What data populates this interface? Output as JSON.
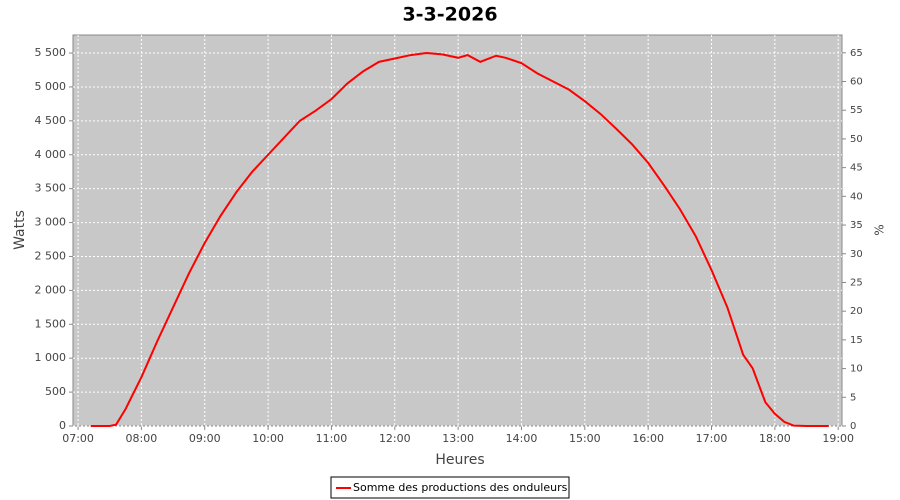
{
  "chart_data": {
    "type": "line",
    "title": "3-3-2026",
    "xlabel": "Heures",
    "ylabel": "Watts",
    "y2label": "%",
    "x": [
      7.2,
      7.5,
      7.6,
      7.75,
      8.0,
      8.25,
      8.5,
      8.75,
      9.0,
      9.25,
      9.5,
      9.75,
      10.0,
      10.25,
      10.5,
      10.75,
      11.0,
      11.25,
      11.5,
      11.75,
      12.0,
      12.25,
      12.5,
      12.75,
      13.0,
      13.15,
      13.35,
      13.6,
      13.75,
      14.0,
      14.25,
      14.5,
      14.75,
      15.0,
      15.25,
      15.5,
      15.75,
      16.0,
      16.25,
      16.5,
      16.75,
      17.0,
      17.25,
      17.5,
      17.65,
      17.85,
      18.0,
      18.15,
      18.3,
      18.5,
      18.85
    ],
    "series": [
      {
        "name": "Somme des productions des onduleurs",
        "color": "#ff0000",
        "values": [
          0,
          0,
          20,
          250,
          720,
          1250,
          1750,
          2250,
          2700,
          3100,
          3450,
          3750,
          4000,
          4250,
          4500,
          4650,
          4820,
          5050,
          5230,
          5370,
          5420,
          5470,
          5500,
          5480,
          5430,
          5470,
          5370,
          5460,
          5430,
          5350,
          5200,
          5080,
          4960,
          4790,
          4600,
          4380,
          4150,
          3880,
          3550,
          3200,
          2800,
          2300,
          1750,
          1050,
          850,
          350,
          180,
          60,
          5,
          0,
          0
        ]
      }
    ],
    "xlim": [
      6.92,
      19.06
    ],
    "xticks": [
      {
        "value": 7,
        "label": "07:00"
      },
      {
        "value": 8,
        "label": "08:00"
      },
      {
        "value": 9,
        "label": "09:00"
      },
      {
        "value": 10,
        "label": "10:00"
      },
      {
        "value": 11,
        "label": "11:00"
      },
      {
        "value": 12,
        "label": "12:00"
      },
      {
        "value": 13,
        "label": "13:00"
      },
      {
        "value": 14,
        "label": "14:00"
      },
      {
        "value": 15,
        "label": "15:00"
      },
      {
        "value": 16,
        "label": "16:00"
      },
      {
        "value": 17,
        "label": "17:00"
      },
      {
        "value": 18,
        "label": "18:00"
      },
      {
        "value": 19,
        "label": "19:00"
      }
    ],
    "ylim": [
      0,
      5766
    ],
    "yticks": [
      0,
      500,
      {
        "value": 1000,
        "label": "1 000"
      },
      {
        "value": 1500,
        "label": "1 500"
      },
      {
        "value": 2000,
        "label": "2 000"
      },
      {
        "value": 2500,
        "label": "2 500"
      },
      {
        "value": 3000,
        "label": "3 000"
      },
      {
        "value": 3500,
        "label": "3 500"
      },
      {
        "value": 4000,
        "label": "4 000"
      },
      {
        "value": 4500,
        "label": "4 500"
      },
      {
        "value": 5000,
        "label": "5 000"
      },
      {
        "value": 5500,
        "label": "5 500"
      }
    ],
    "y2lim": [
      0,
      68.1
    ],
    "y2ticks": [
      0,
      5,
      10,
      15,
      20,
      25,
      30,
      35,
      40,
      45,
      50,
      55,
      60,
      65
    ],
    "grid": true,
    "legend": "bottom"
  }
}
